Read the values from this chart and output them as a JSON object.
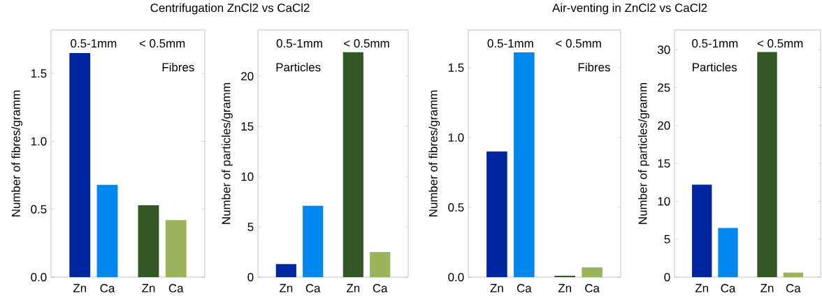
{
  "chart_data": [
    {
      "type": "bar",
      "title": "Centrifugation ZnCl2 vs CaCl2",
      "ylabel": "Number of fibres/gramm",
      "categories": [
        "Zn",
        "Ca",
        "Zn",
        "Ca"
      ],
      "values": [
        1.65,
        0.68,
        0.53,
        0.42
      ],
      "colors": [
        "#0026a0",
        "#0088ee",
        "#345726",
        "#9ab45c"
      ],
      "ylim": [
        0,
        1.82
      ],
      "yticks": [
        {
          "value": 0,
          "label": "0.0"
        },
        {
          "value": 0.5,
          "label": "0.5"
        },
        {
          "value": 1,
          "label": "1.0"
        },
        {
          "value": 1.5,
          "label": "1.5"
        }
      ],
      "annotations": [
        "0.5-1mm",
        "< 0.5mm",
        "Fibres"
      ]
    },
    {
      "type": "bar",
      "ylabel": "Number of particles/gramm",
      "categories": [
        "Zn",
        "Ca",
        "Zn",
        "Ca"
      ],
      "values": [
        1.3,
        7.1,
        22.4,
        2.5
      ],
      "colors": [
        "#0026a0",
        "#0088ee",
        "#345726",
        "#9ab45c"
      ],
      "ylim": [
        0,
        24.6
      ],
      "yticks": [
        0,
        5,
        10,
        15,
        20
      ],
      "annotations": [
        "0.5-1mm",
        "< 0.5mm",
        "Particles"
      ]
    },
    {
      "type": "bar",
      "title": "Air-venting in ZnCl2 vs CaCl2",
      "ylabel": "Number of fibres/gramm",
      "categories": [
        "Zn",
        "Ca",
        "Zn",
        "Ca"
      ],
      "values": [
        0.9,
        1.61,
        0.01,
        0.07
      ],
      "colors": [
        "#0026a0",
        "#0088ee",
        "#345726",
        "#9ab45c"
      ],
      "ylim": [
        0,
        1.77
      ],
      "yticks": [
        {
          "value": 0,
          "label": "0.0"
        },
        {
          "value": 0.5,
          "label": "0.5"
        },
        {
          "value": 1,
          "label": "1.0"
        },
        {
          "value": 1.5,
          "label": "1.5"
        }
      ],
      "annotations": [
        "0.5-1mm",
        "< 0.5mm",
        "Fibres"
      ]
    },
    {
      "type": "bar",
      "ylabel": "Number of particles/gramm",
      "categories": [
        "Zn",
        "Ca",
        "Zn",
        "Ca"
      ],
      "values": [
        12.2,
        6.5,
        29.7,
        0.6
      ],
      "colors": [
        "#0026a0",
        "#0088ee",
        "#345726",
        "#9ab45c"
      ],
      "ylim": [
        0,
        32.6
      ],
      "yticks": [
        0,
        5,
        10,
        15,
        20,
        25,
        30
      ],
      "annotations": [
        "0.5-1mm",
        "< 0.5mm",
        "Particles"
      ]
    }
  ]
}
